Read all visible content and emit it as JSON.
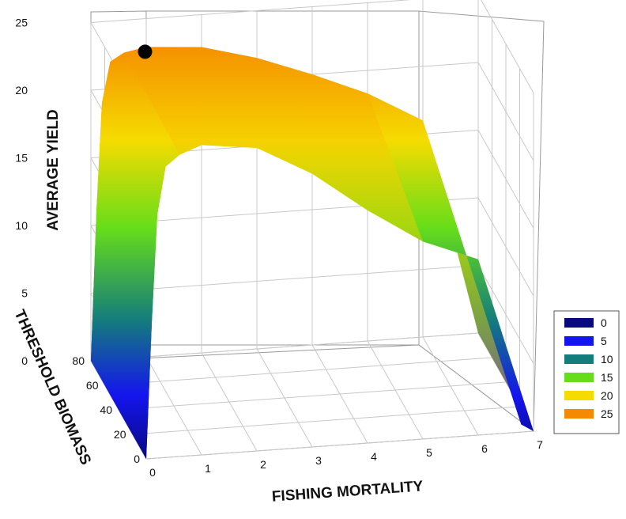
{
  "chart_data": {
    "type": "surface3d",
    "title": "",
    "xlabel": "FISHING MORTALITY",
    "ylabel": "THRESHOLD BIOMASS",
    "zlabel": "AVERAGE YIELD",
    "x_ticks": [
      "0",
      "1",
      "2",
      "3",
      "4",
      "5",
      "6",
      "7"
    ],
    "y_ticks": [
      "0",
      "20",
      "40",
      "60",
      "80"
    ],
    "z_ticks": [
      "0",
      "5",
      "10",
      "15",
      "20",
      "25"
    ],
    "xlim": [
      0,
      7
    ],
    "ylim": [
      0,
      80
    ],
    "zlim": [
      0,
      25
    ],
    "grid": true,
    "legend_position": "right",
    "legend": [
      {
        "label": "0",
        "color": "#0a0a80"
      },
      {
        "label": "5",
        "color": "#1414ee"
      },
      {
        "label": "10",
        "color": "#147c7c"
      },
      {
        "label": "15",
        "color": "#66dd1a"
      },
      {
        "label": "20",
        "color": "#f5dc00"
      },
      {
        "label": "25",
        "color": "#f58a00"
      }
    ],
    "optimum_marker": {
      "fishing_mortality": 1.0,
      "threshold_biomass": 80,
      "average_yield": 22.9
    },
    "surface_profiles": [
      {
        "name": "front",
        "threshold_biomass": 0,
        "points": [
          [
            0,
            0
          ],
          [
            0.1,
            10
          ],
          [
            0.2,
            18
          ],
          [
            0.35,
            21.5
          ],
          [
            0.6,
            22.3
          ],
          [
            1,
            22.9
          ],
          [
            2,
            22.4
          ],
          [
            3,
            20.2
          ],
          [
            4,
            17.2
          ],
          [
            5,
            14.6
          ],
          [
            6,
            13.0
          ],
          [
            7,
            0
          ]
        ]
      },
      {
        "name": "back",
        "threshold_biomass": 80,
        "points": [
          [
            0,
            0
          ],
          [
            0.1,
            11
          ],
          [
            0.2,
            19
          ],
          [
            0.35,
            22
          ],
          [
            0.6,
            22.6
          ],
          [
            1,
            22.9
          ],
          [
            2,
            22.6
          ],
          [
            3,
            21.5
          ],
          [
            4,
            20.0
          ],
          [
            5,
            18.3
          ],
          [
            6,
            16.0
          ],
          [
            7,
            0
          ]
        ]
      }
    ]
  }
}
